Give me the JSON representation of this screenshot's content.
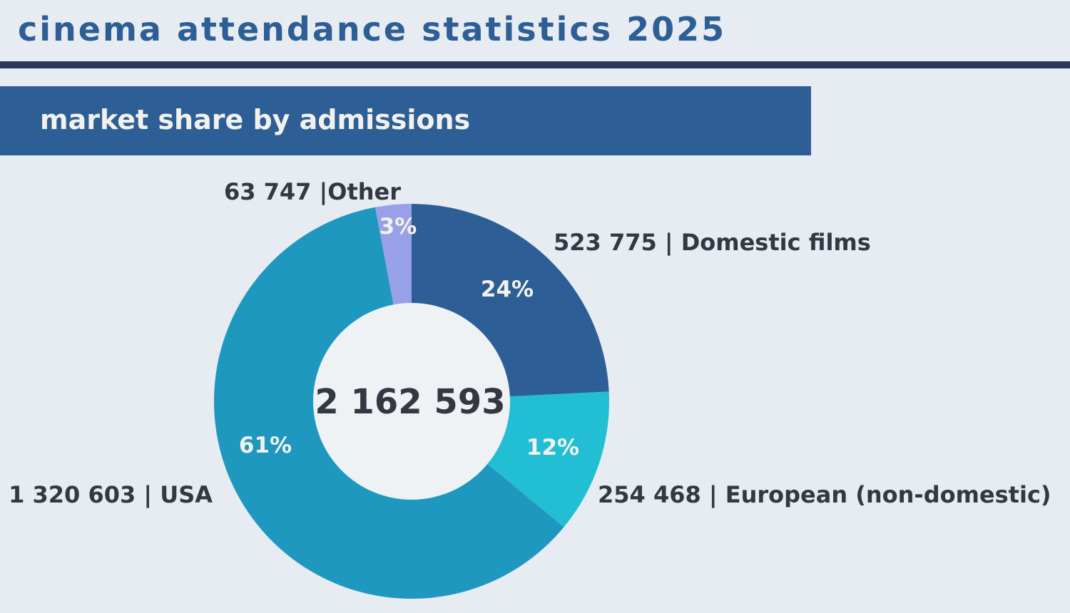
{
  "header": {
    "title": "cinema attendance statistics 2025",
    "subtitle": "market share by admissions"
  },
  "chart_data": {
    "type": "pie",
    "variant": "donut",
    "title": "market share by admissions",
    "total_label": "2 162 593",
    "start": "top, clockwise",
    "slices": [
      {
        "name": "Domestic films",
        "value": 523775,
        "value_label": "523 775",
        "label": "523 775 | Domestic films",
        "percent_label": "24%",
        "color": "#2E5E96"
      },
      {
        "name": "European (non-domestic)",
        "value": 254468,
        "value_label": "254 468",
        "label": "254 468 | European (non-domestic)",
        "percent_label": "12%",
        "color": "#22BFD4"
      },
      {
        "name": "USA",
        "value": 1320603,
        "value_label": "1 320 603",
        "label": "1 320 603 | USA",
        "percent_label": "61%",
        "color": "#1F98C0"
      },
      {
        "name": "Other",
        "value": 63747,
        "value_label": "63 747",
        "label": "63 747 |Other",
        "percent_label": "3%",
        "color": "#98A0E8"
      }
    ]
  }
}
